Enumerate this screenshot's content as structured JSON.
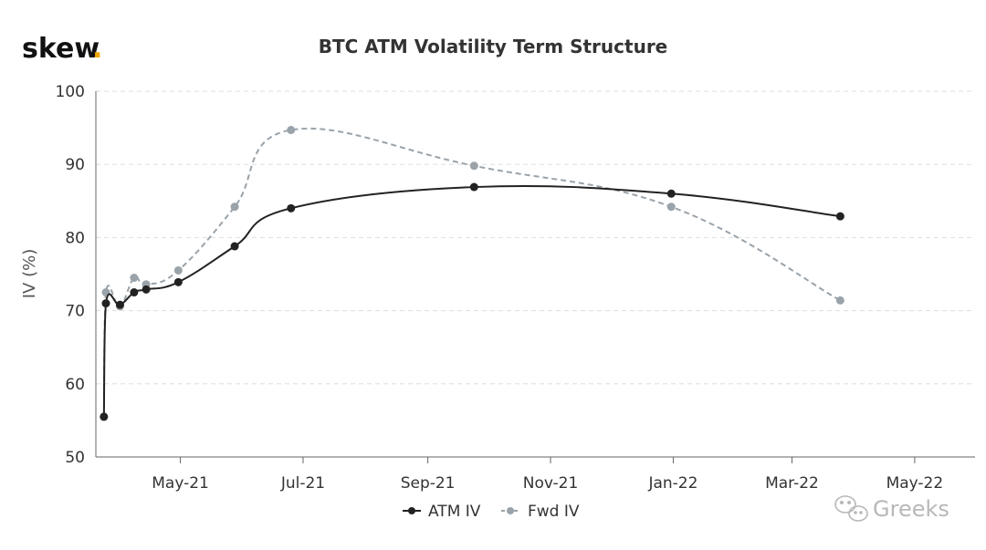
{
  "brand": {
    "logo_text": "skew",
    "logo_dot": ".",
    "accent_color": "#f0a500"
  },
  "watermark": {
    "text": "Greeks",
    "icon": "wechat-icon"
  },
  "chart_data": {
    "type": "line",
    "title": "BTC ATM Volatility Term Structure",
    "xlabel": "",
    "ylabel": "IV (%)",
    "ylim": [
      50,
      100
    ],
    "yticks": [
      50,
      60,
      70,
      80,
      90,
      100
    ],
    "xlim": [
      "2021-03-20",
      "2022-05-31"
    ],
    "xticks": [
      {
        "date": "2021-05-01",
        "label": "May-21"
      },
      {
        "date": "2021-07-01",
        "label": "Jul-21"
      },
      {
        "date": "2021-09-01",
        "label": "Sep-21"
      },
      {
        "date": "2021-11-01",
        "label": "Nov-21"
      },
      {
        "date": "2022-01-01",
        "label": "Jan-22"
      },
      {
        "date": "2022-03-01",
        "label": "Mar-22"
      },
      {
        "date": "2022-05-01",
        "label": "May-22"
      }
    ],
    "grid": {
      "y": true,
      "x": false,
      "style": "dashed"
    },
    "legend": "bottom-center",
    "series": [
      {
        "name": "ATM IV",
        "color": "#222222",
        "dash": "solid",
        "points": [
          {
            "x": "2021-03-24",
            "y": 55.5
          },
          {
            "x": "2021-03-25",
            "y": 71.0
          },
          {
            "x": "2021-04-01",
            "y": 70.8
          },
          {
            "x": "2021-04-08",
            "y": 72.5
          },
          {
            "x": "2021-04-14",
            "y": 72.9
          },
          {
            "x": "2021-04-30",
            "y": 73.9
          },
          {
            "x": "2021-05-28",
            "y": 78.8
          },
          {
            "x": "2021-06-25",
            "y": 84.0
          },
          {
            "x": "2021-09-24",
            "y": 86.9
          },
          {
            "x": "2021-12-31",
            "y": 86.0
          },
          {
            "x": "2022-03-25",
            "y": 82.9
          }
        ]
      },
      {
        "name": "Fwd IV",
        "color": "#9aa3aa",
        "dash": "dashed",
        "points": [
          {
            "x": "2021-03-24",
            "y": 55.5
          },
          {
            "x": "2021-03-25",
            "y": 72.5
          },
          {
            "x": "2021-04-01",
            "y": 70.6
          },
          {
            "x": "2021-04-08",
            "y": 74.5
          },
          {
            "x": "2021-04-14",
            "y": 73.6
          },
          {
            "x": "2021-04-30",
            "y": 75.5
          },
          {
            "x": "2021-05-28",
            "y": 84.2
          },
          {
            "x": "2021-06-25",
            "y": 94.7
          },
          {
            "x": "2021-09-24",
            "y": 89.8
          },
          {
            "x": "2021-12-31",
            "y": 84.2
          },
          {
            "x": "2022-03-25",
            "y": 71.4
          }
        ]
      }
    ]
  }
}
